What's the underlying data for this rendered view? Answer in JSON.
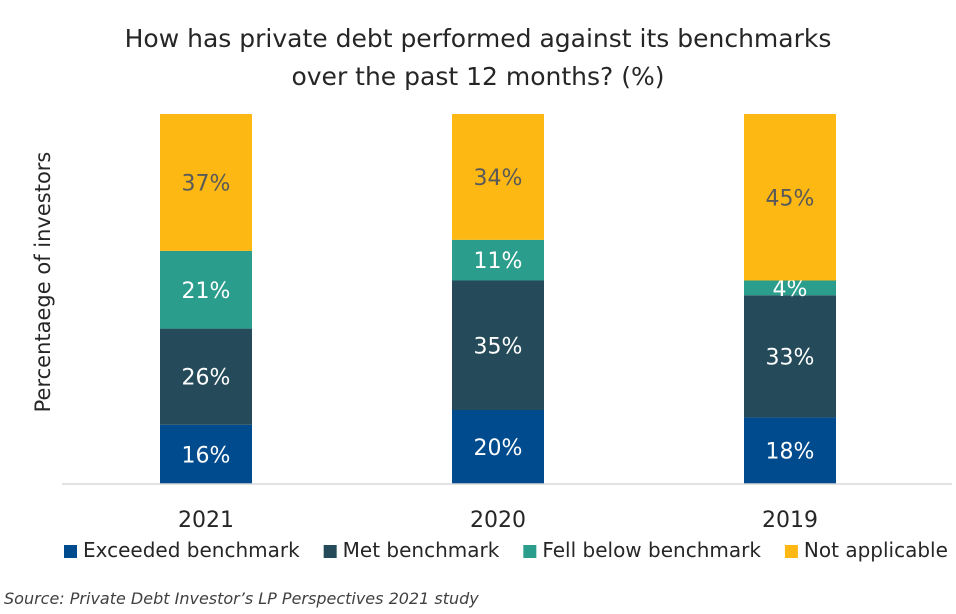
{
  "chart_data": {
    "type": "bar",
    "stacked": true,
    "title_lines": [
      "How has private debt performed against its benchmarks",
      "over the past 12 months? (%)"
    ],
    "ylabel": "Percentaege of investors",
    "xlabel": "",
    "categories": [
      "2021",
      "2020",
      "2019"
    ],
    "series": [
      {
        "name": "Exceeded benchmark",
        "color": "#004B8D",
        "label_color": "#ffffff",
        "values": [
          16,
          20,
          18
        ]
      },
      {
        "name": "Met benchmark",
        "color": "#254B5A",
        "label_color": "#ffffff",
        "values": [
          26,
          35,
          33
        ]
      },
      {
        "name": "Fell below benchmark",
        "color": "#2A9D8C",
        "label_color": "#ffffff",
        "values": [
          21,
          11,
          4
        ]
      },
      {
        "name": "Not applicable",
        "color": "#FDB813",
        "label_color": "#595959",
        "values": [
          37,
          34,
          45
        ]
      }
    ],
    "ylim": [
      0,
      100
    ],
    "value_suffix": "%",
    "grid": false,
    "legend_position": "bottom"
  },
  "source": "Source: Private Debt Investor’s LP Perspectives 2021 study"
}
